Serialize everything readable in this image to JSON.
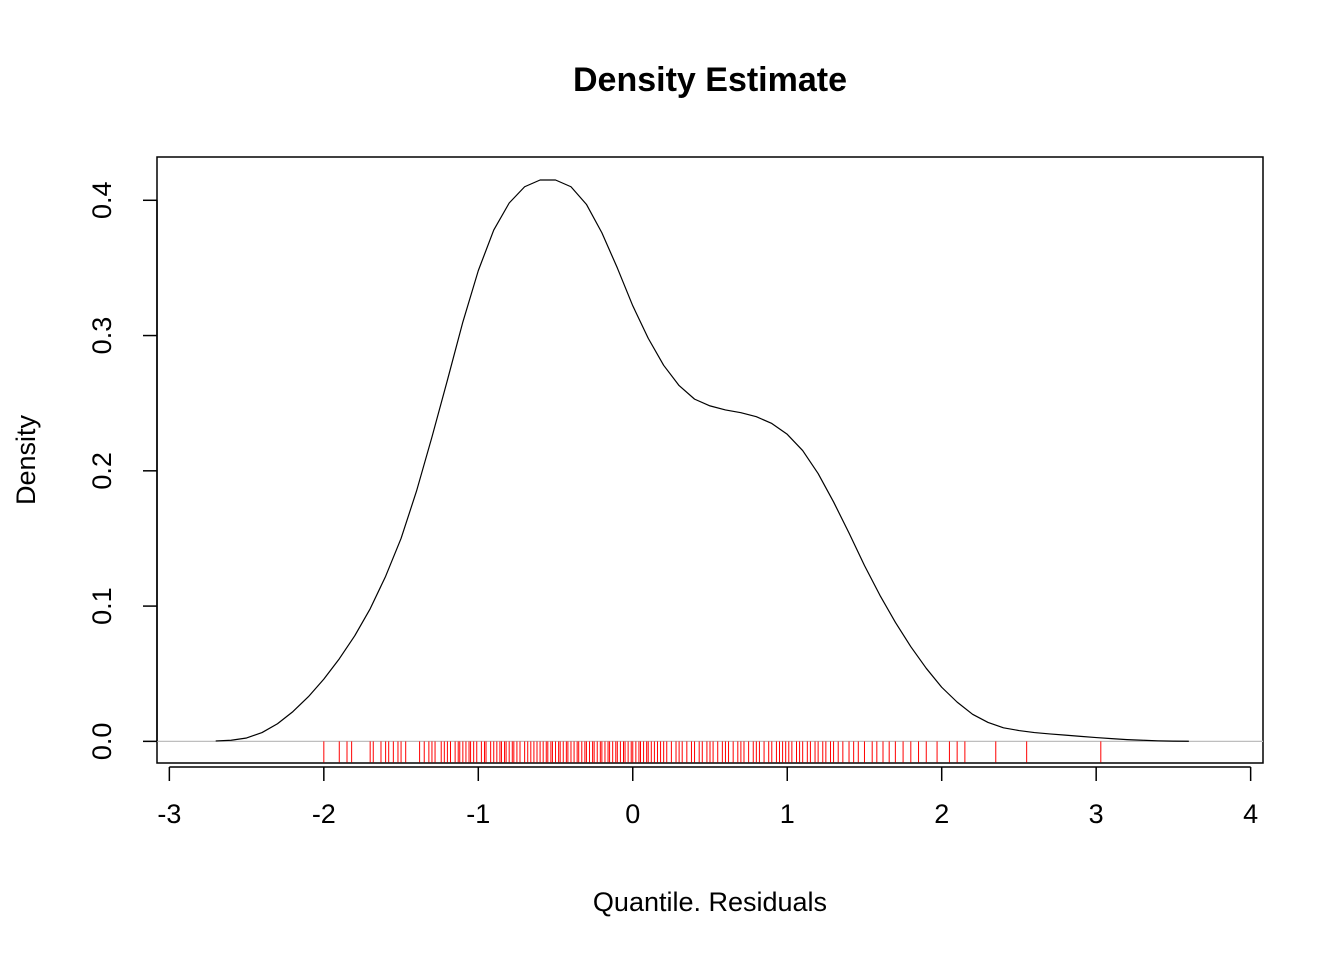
{
  "chart_data": {
    "type": "line",
    "title": "Density Estimate",
    "xlabel": "Quantile. Residuals",
    "ylabel": "Density",
    "xlim": [
      -3.08,
      4.08
    ],
    "ylim": [
      -0.016,
      0.432
    ],
    "x_ticks": [
      -3,
      -2,
      -1,
      0,
      1,
      2,
      3,
      4
    ],
    "x_tick_labels": [
      "-3",
      "-2",
      "-1",
      "0",
      "1",
      "2",
      "3",
      "4"
    ],
    "y_ticks": [
      0.0,
      0.1,
      0.2,
      0.3,
      0.4
    ],
    "y_tick_labels": [
      "0.0",
      "0.1",
      "0.2",
      "0.3",
      "0.4"
    ],
    "grid": false,
    "legend": "none",
    "baseline": {
      "y": 0,
      "color": "#bebebe"
    },
    "series": [
      {
        "color": "#000000",
        "x": [
          -2.7,
          -2.6,
          -2.5,
          -2.4,
          -2.3,
          -2.2,
          -2.1,
          -2.0,
          -1.9,
          -1.8,
          -1.7,
          -1.6,
          -1.5,
          -1.4,
          -1.3,
          -1.2,
          -1.1,
          -1.0,
          -0.9,
          -0.8,
          -0.7,
          -0.6,
          -0.5,
          -0.4,
          -0.3,
          -0.2,
          -0.1,
          0.0,
          0.1,
          0.2,
          0.3,
          0.4,
          0.5,
          0.6,
          0.7,
          0.8,
          0.9,
          1.0,
          1.1,
          1.2,
          1.3,
          1.4,
          1.5,
          1.6,
          1.7,
          1.8,
          1.9,
          2.0,
          2.1,
          2.2,
          2.3,
          2.4,
          2.5,
          2.6,
          2.7,
          2.8,
          2.9,
          3.0,
          3.1,
          3.2,
          3.3,
          3.4,
          3.5,
          3.6
        ],
        "y": [
          0.0003,
          0.0008,
          0.0025,
          0.0065,
          0.013,
          0.022,
          0.033,
          0.046,
          0.061,
          0.078,
          0.098,
          0.122,
          0.15,
          0.185,
          0.225,
          0.267,
          0.31,
          0.348,
          0.378,
          0.398,
          0.41,
          0.415,
          0.415,
          0.41,
          0.397,
          0.376,
          0.35,
          0.322,
          0.298,
          0.278,
          0.263,
          0.253,
          0.248,
          0.245,
          0.243,
          0.24,
          0.235,
          0.227,
          0.215,
          0.198,
          0.177,
          0.154,
          0.13,
          0.108,
          0.088,
          0.07,
          0.054,
          0.04,
          0.029,
          0.02,
          0.014,
          0.01,
          0.008,
          0.0065,
          0.0055,
          0.0046,
          0.0037,
          0.0028,
          0.002,
          0.0013,
          0.0008,
          0.0004,
          0.0002,
          0.0001
        ]
      }
    ],
    "rug": {
      "color": "#ff0000",
      "values": [
        -2.0,
        -1.9,
        -1.85,
        -1.82,
        -1.7,
        -1.68,
        -1.63,
        -1.6,
        -1.58,
        -1.55,
        -1.52,
        -1.5,
        -1.47,
        -1.38,
        -1.35,
        -1.32,
        -1.3,
        -1.28,
        -1.24,
        -1.22,
        -1.2,
        -1.18,
        -1.15,
        -1.13,
        -1.12,
        -1.1,
        -1.08,
        -1.06,
        -1.05,
        -1.03,
        -1.01,
        -0.98,
        -0.96,
        -0.95,
        -0.92,
        -0.9,
        -0.88,
        -0.86,
        -0.85,
        -0.83,
        -0.82,
        -0.8,
        -0.78,
        -0.77,
        -0.75,
        -0.73,
        -0.7,
        -0.68,
        -0.66,
        -0.64,
        -0.62,
        -0.6,
        -0.58,
        -0.56,
        -0.55,
        -0.53,
        -0.52,
        -0.5,
        -0.48,
        -0.47,
        -0.45,
        -0.43,
        -0.42,
        -0.4,
        -0.38,
        -0.36,
        -0.35,
        -0.33,
        -0.31,
        -0.3,
        -0.28,
        -0.26,
        -0.25,
        -0.23,
        -0.21,
        -0.2,
        -0.18,
        -0.16,
        -0.15,
        -0.13,
        -0.11,
        -0.1,
        -0.08,
        -0.06,
        -0.05,
        -0.03,
        -0.01,
        0.0,
        0.02,
        0.04,
        0.05,
        0.07,
        0.09,
        0.1,
        0.12,
        0.14,
        0.16,
        0.18,
        0.2,
        0.22,
        0.25,
        0.28,
        0.3,
        0.32,
        0.35,
        0.38,
        0.4,
        0.43,
        0.45,
        0.48,
        0.5,
        0.52,
        0.55,
        0.58,
        0.6,
        0.62,
        0.65,
        0.68,
        0.7,
        0.72,
        0.75,
        0.78,
        0.8,
        0.82,
        0.85,
        0.88,
        0.9,
        0.93,
        0.95,
        0.97,
        0.99,
        1.01,
        1.03,
        1.06,
        1.08,
        1.1,
        1.13,
        1.15,
        1.18,
        1.2,
        1.23,
        1.25,
        1.28,
        1.3,
        1.33,
        1.36,
        1.4,
        1.43,
        1.46,
        1.5,
        1.55,
        1.58,
        1.62,
        1.66,
        1.7,
        1.75,
        1.8,
        1.85,
        1.9,
        1.97,
        2.05,
        2.1,
        2.15,
        2.35,
        2.55,
        3.03
      ]
    }
  }
}
